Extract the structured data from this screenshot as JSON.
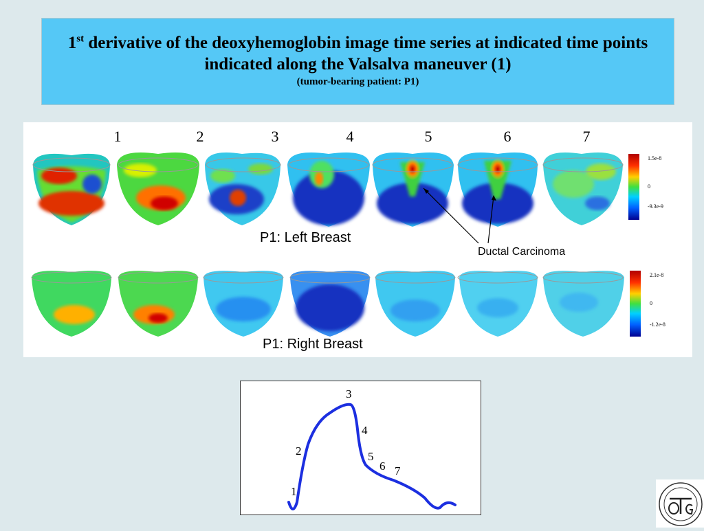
{
  "title": {
    "prefix": "1",
    "sup": "st",
    "rest": " derivative of the deoxyhemoglobin image time series at indicated time points indicated along the Valsalva maneuver (1)",
    "subtitle": "(tumor-bearing patient: P1)"
  },
  "time_labels": [
    "1",
    "2",
    "3",
    "4",
    "5",
    "6",
    "7"
  ],
  "left_breast": {
    "label": "P1:  Left Breast",
    "colorbar": {
      "max": "1.5e-8",
      "mid": "0",
      "min": "-9.3e-9"
    }
  },
  "right_breast": {
    "label": "P1:  Right Breast",
    "colorbar": {
      "max": "2.1e-8",
      "mid": "0",
      "min": "-1.2e-8"
    }
  },
  "annotation": "Ductal Carcinoma",
  "curve_labels": [
    "1",
    "2",
    "3",
    "4",
    "5",
    "6",
    "7"
  ],
  "colors": {
    "title_bg": "#55c8f6",
    "slide_bg": "#dde9ec",
    "curve": "#1c2fe0"
  }
}
